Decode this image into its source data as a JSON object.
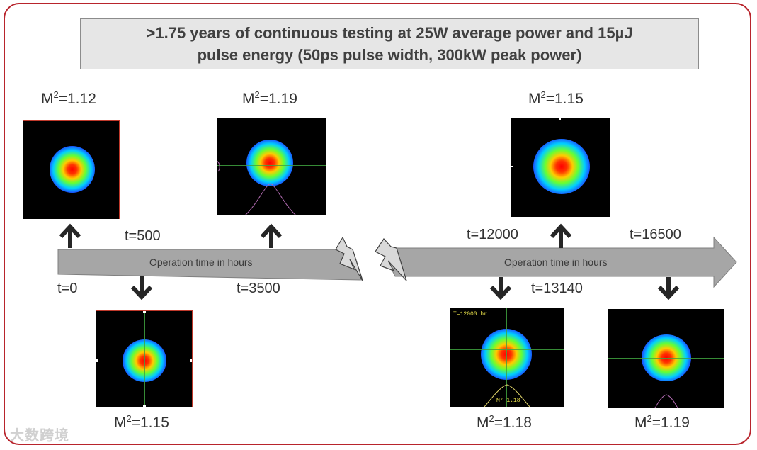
{
  "title": {
    "line1": ">1.75 years of continuous testing at 25W average power and 15µJ",
    "line2": "pulse energy (50ps pulse width, 300kW peak power)"
  },
  "timeline": {
    "axis_label_left": "Operation time in hours",
    "axis_label_right": "Operation time in hours",
    "time_labels": {
      "t0": "t=0",
      "t500": "t=500",
      "t3500": "t=3500",
      "t12000": "t=12000",
      "t13140": "t=13140",
      "t16500": "t=16500"
    }
  },
  "measurements": [
    {
      "time": "t=0",
      "m2_prefix": "M",
      "m2_sup": "2",
      "m2_value": "=1.12"
    },
    {
      "time": "t=500",
      "m2_prefix": "M",
      "m2_sup": "2",
      "m2_value": "=1.15"
    },
    {
      "time": "t=3500",
      "m2_prefix": "M",
      "m2_sup": "2",
      "m2_value": "=1.19"
    },
    {
      "time": "t=12000",
      "m2_prefix": "M",
      "m2_sup": "2",
      "m2_value": "=1.18"
    },
    {
      "time": "t=13140",
      "m2_prefix": "M",
      "m2_sup": "2",
      "m2_value": "=1.15"
    },
    {
      "time": "t=16500",
      "m2_prefix": "M",
      "m2_sup": "2",
      "m2_value": "=1.19"
    }
  ],
  "beam_overlays": {
    "t12000_header": "T=12000 hr",
    "t12000_footer": "M² 1.18"
  },
  "colors": {
    "frame": "#b8242c",
    "arrow_fill": "#a6a6a6",
    "arrow_dark": "#262626"
  },
  "watermark": "大数跨境"
}
